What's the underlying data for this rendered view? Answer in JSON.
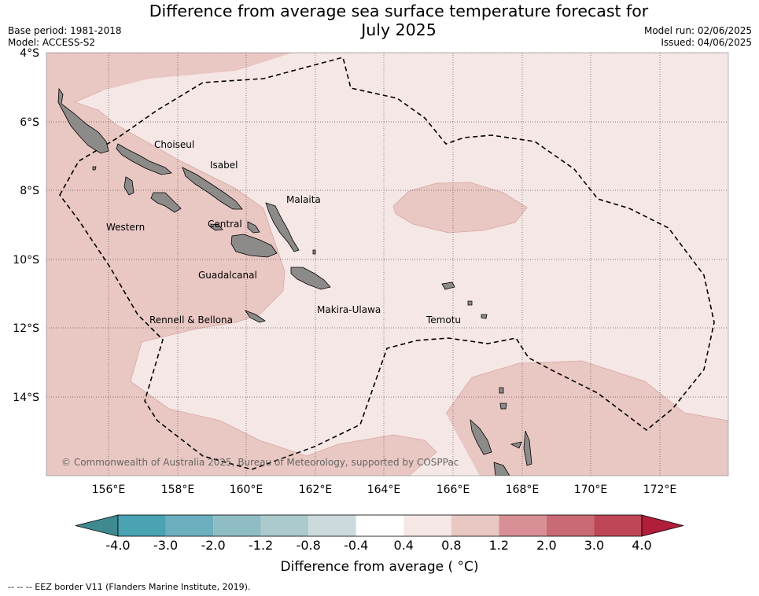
{
  "title_line1": "Difference from average sea surface temperature forecast for",
  "title_line2": "July 2025",
  "meta": {
    "base_period": "Base period: 1981-2018",
    "model": "Model: ACCESS-S2",
    "model_run": "Model run: 02/06/2025",
    "issued": "Issued: 04/06/2025"
  },
  "axes": {
    "lat_labels": [
      "4°S",
      "6°S",
      "8°S",
      "10°S",
      "12°S",
      "14°S"
    ],
    "lon_labels": [
      "156°E",
      "158°E",
      "160°E",
      "162°E",
      "164°E",
      "166°E",
      "168°E",
      "170°E",
      "172°E"
    ]
  },
  "regions": [
    {
      "name": "Choiseul"
    },
    {
      "name": "Isabel"
    },
    {
      "name": "Malaita"
    },
    {
      "name": "Western"
    },
    {
      "name": "Central"
    },
    {
      "name": "Guadalcanal"
    },
    {
      "name": "Makira-Ulawa"
    },
    {
      "name": "Rennell & Bellona"
    },
    {
      "name": "Temotu"
    }
  ],
  "copyright": "© Commonwealth of Australia 2025, Bureau of Meteorology, supported by COSPPac",
  "colorbar": {
    "label": "Difference from average ( °C)",
    "ticks": [
      "-4.0",
      "-3.0",
      "-2.0",
      "-1.2",
      "-0.8",
      "-0.4",
      "0.4",
      "0.8",
      "1.2",
      "2.0",
      "3.0",
      "4.0"
    ],
    "colors": {
      "under": "#3e8a90",
      "bins": [
        "#4aa3b3",
        "#6cb0bf",
        "#8fbdc5",
        "#abcacd",
        "#ccdadd",
        "#ffffff",
        "#f5e7e6",
        "#e9c7c2",
        "#d88f95",
        "#c96a74",
        "#bf4656"
      ],
      "over": "#b01e3a"
    }
  },
  "colors": {
    "anomaly_low": "#f5e7e6",
    "anomaly_mid": "#e9c7c2",
    "land": "#8c8b8a"
  },
  "footnote": "-- -- -- EEZ border V11 (Flanders Marine Institute, 2019)."
}
